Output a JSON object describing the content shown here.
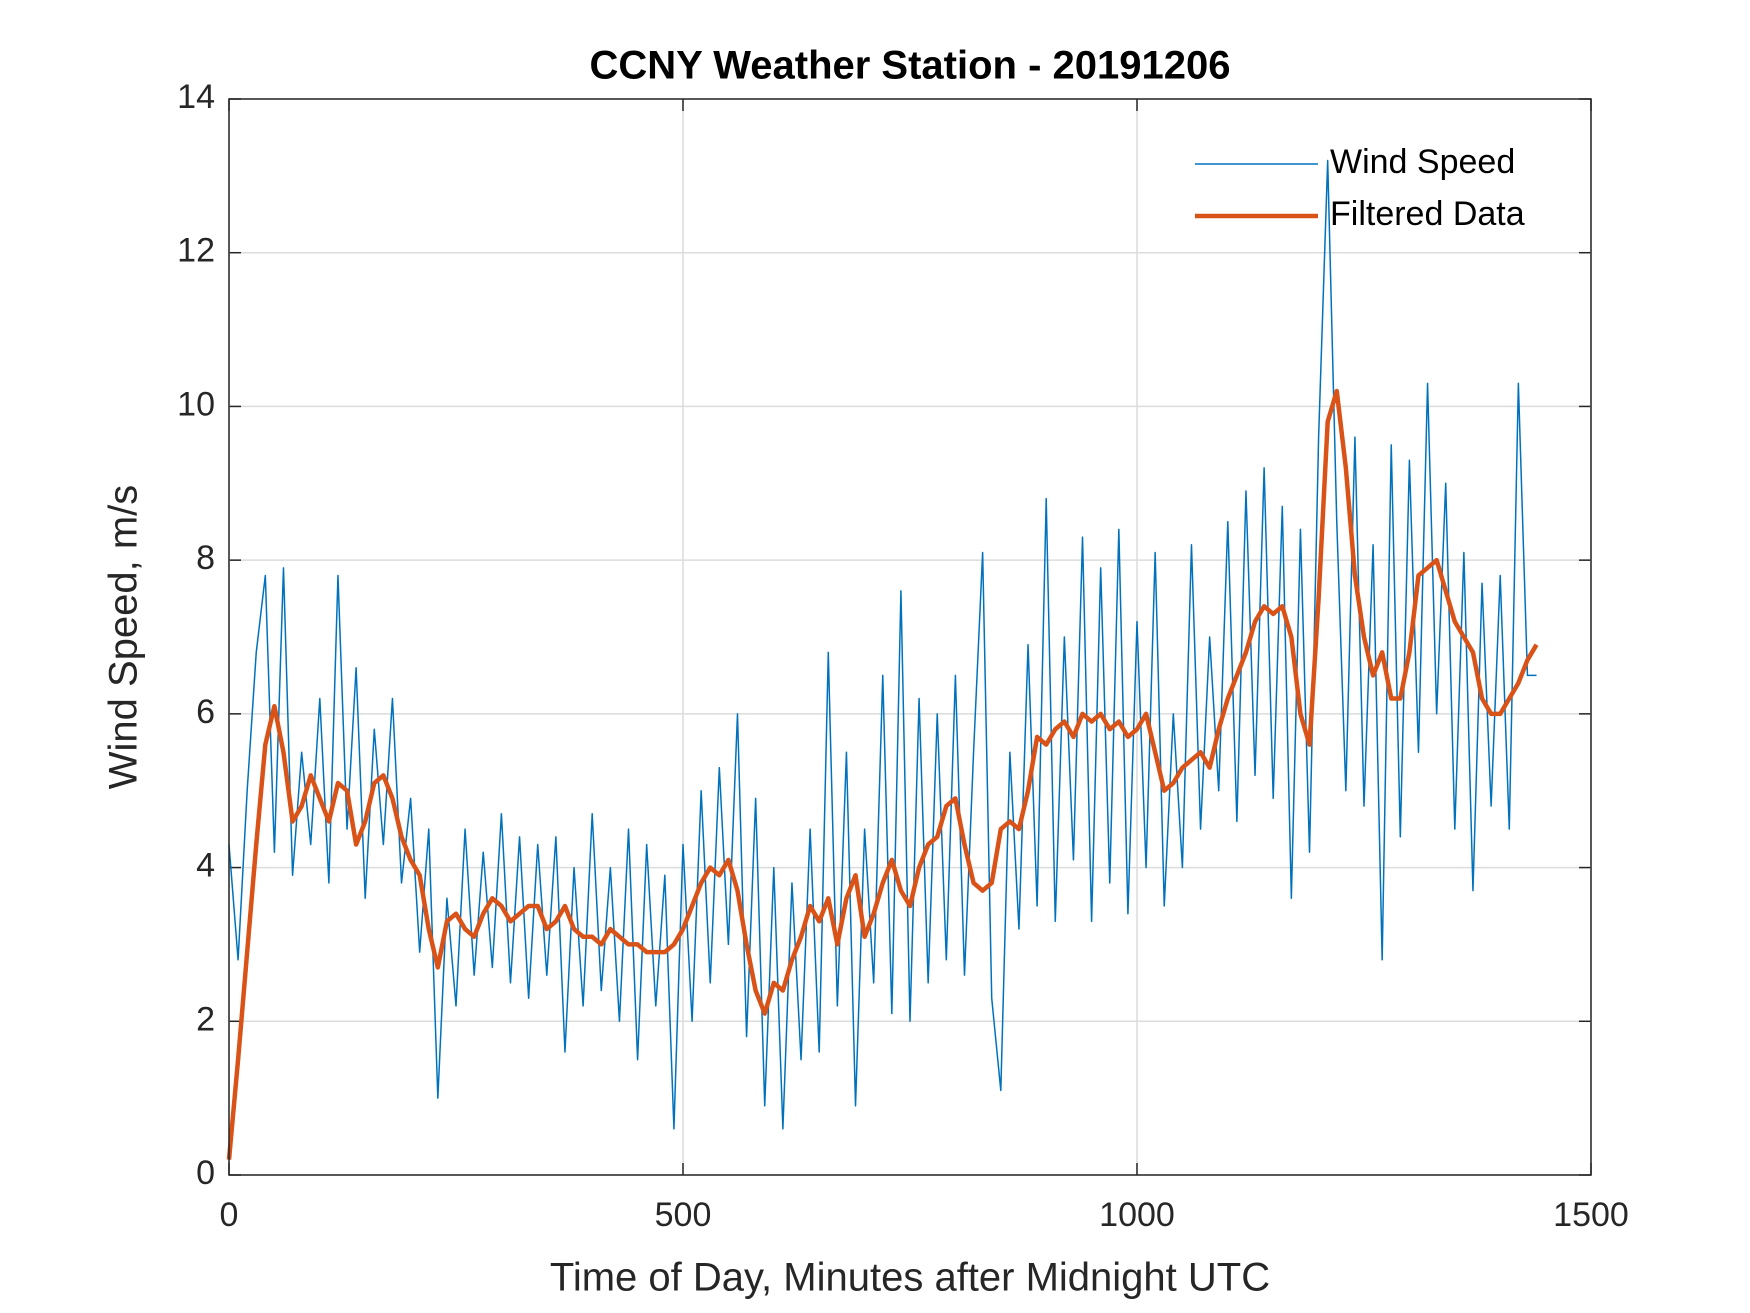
{
  "chart_data": {
    "type": "line",
    "title": "CCNY Weather Station - 20191206",
    "x_label": "Time of Day, Minutes after Midnight UTC",
    "y_label": "Wind Speed, m/s",
    "x": [
      0,
      10,
      20,
      30,
      40,
      50,
      60,
      70,
      80,
      90,
      100,
      110,
      120,
      130,
      140,
      150,
      160,
      170,
      180,
      190,
      200,
      210,
      220,
      230,
      240,
      250,
      260,
      270,
      280,
      290,
      300,
      310,
      320,
      330,
      340,
      350,
      360,
      370,
      380,
      390,
      400,
      410,
      420,
      430,
      440,
      450,
      460,
      470,
      480,
      490,
      500,
      510,
      520,
      530,
      540,
      550,
      560,
      570,
      580,
      590,
      600,
      610,
      620,
      630,
      640,
      650,
      660,
      670,
      680,
      690,
      700,
      710,
      720,
      730,
      740,
      750,
      760,
      770,
      780,
      790,
      800,
      810,
      820,
      830,
      840,
      850,
      860,
      870,
      880,
      890,
      900,
      910,
      920,
      930,
      940,
      950,
      960,
      970,
      980,
      990,
      1000,
      1010,
      1020,
      1030,
      1040,
      1050,
      1060,
      1070,
      1080,
      1090,
      1100,
      1110,
      1120,
      1130,
      1140,
      1150,
      1160,
      1170,
      1180,
      1190,
      1200,
      1210,
      1220,
      1230,
      1240,
      1250,
      1260,
      1270,
      1280,
      1290,
      1300,
      1310,
      1320,
      1330,
      1340,
      1350,
      1360,
      1370,
      1380,
      1390,
      1400,
      1410,
      1420,
      1430,
      1440
    ],
    "series": [
      {
        "name": "Wind Speed",
        "color": "#0072BD",
        "width": 1.5,
        "values": [
          4.3,
          2.8,
          5.0,
          6.8,
          7.8,
          4.2,
          7.9,
          3.9,
          5.5,
          4.3,
          6.2,
          3.8,
          7.8,
          4.5,
          6.6,
          3.6,
          5.8,
          4.3,
          6.2,
          3.8,
          4.9,
          2.9,
          4.5,
          1.0,
          3.6,
          2.2,
          4.5,
          2.6,
          4.2,
          2.7,
          4.7,
          2.5,
          4.4,
          2.3,
          4.3,
          2.6,
          4.4,
          1.6,
          4.0,
          2.2,
          4.7,
          2.4,
          4.0,
          2.0,
          4.5,
          1.5,
          4.3,
          2.2,
          3.9,
          0.6,
          4.3,
          2.0,
          5.0,
          2.5,
          5.3,
          3.0,
          6.0,
          1.8,
          4.9,
          0.9,
          4.0,
          0.6,
          3.8,
          1.5,
          4.5,
          1.6,
          6.8,
          2.2,
          5.5,
          0.9,
          4.5,
          2.5,
          6.5,
          2.1,
          7.6,
          2.0,
          6.2,
          2.5,
          6.0,
          2.8,
          6.5,
          2.6,
          5.5,
          8.1,
          2.3,
          1.1,
          5.5,
          3.2,
          6.9,
          3.5,
          8.8,
          3.3,
          7.0,
          4.1,
          8.3,
          3.3,
          7.9,
          3.8,
          8.4,
          3.4,
          7.2,
          4.0,
          8.1,
          3.5,
          6.0,
          4.0,
          8.2,
          4.5,
          7.0,
          5.0,
          8.5,
          4.6,
          8.9,
          5.2,
          9.2,
          4.9,
          8.7,
          3.6,
          8.4,
          4.2,
          9.6,
          13.2,
          8.5,
          5.0,
          9.6,
          4.8,
          8.2,
          2.8,
          9.5,
          4.4,
          9.3,
          5.5,
          10.3,
          6.0,
          9.0,
          4.5,
          8.1,
          3.7,
          7.7,
          4.8,
          7.8,
          4.5,
          10.3,
          6.5,
          6.5
        ]
      },
      {
        "name": "Filtered Data",
        "color": "#D95319",
        "width": 4.5,
        "values": [
          0.2,
          1.5,
          2.9,
          4.3,
          5.6,
          6.1,
          5.5,
          4.6,
          4.8,
          5.2,
          4.9,
          4.6,
          5.1,
          5.0,
          4.3,
          4.6,
          5.1,
          5.2,
          4.9,
          4.4,
          4.1,
          3.9,
          3.2,
          2.7,
          3.3,
          3.4,
          3.2,
          3.1,
          3.4,
          3.6,
          3.5,
          3.3,
          3.4,
          3.5,
          3.5,
          3.2,
          3.3,
          3.5,
          3.2,
          3.1,
          3.1,
          3.0,
          3.2,
          3.1,
          3.0,
          3.0,
          2.9,
          2.9,
          2.9,
          3.0,
          3.2,
          3.5,
          3.8,
          4.0,
          3.9,
          4.1,
          3.7,
          3.0,
          2.4,
          2.1,
          2.5,
          2.4,
          2.8,
          3.1,
          3.5,
          3.3,
          3.6,
          3.0,
          3.6,
          3.9,
          3.1,
          3.4,
          3.8,
          4.1,
          3.7,
          3.5,
          4.0,
          4.3,
          4.4,
          4.8,
          4.9,
          4.3,
          3.8,
          3.7,
          3.8,
          4.5,
          4.6,
          4.5,
          5.0,
          5.7,
          5.6,
          5.8,
          5.9,
          5.7,
          6.0,
          5.9,
          6.0,
          5.8,
          5.9,
          5.7,
          5.8,
          6.0,
          5.5,
          5.0,
          5.1,
          5.3,
          5.4,
          5.5,
          5.3,
          5.8,
          6.2,
          6.5,
          6.8,
          7.2,
          7.4,
          7.3,
          7.4,
          7.0,
          6.0,
          5.6,
          7.5,
          9.8,
          10.2,
          9.2,
          7.8,
          7.0,
          6.5,
          6.8,
          6.2,
          6.2,
          6.8,
          7.8,
          7.9,
          8.0,
          7.6,
          7.2,
          7.0,
          6.8,
          6.2,
          6.0,
          6.0,
          6.2,
          6.4,
          6.7,
          6.9
        ]
      }
    ],
    "xlim": [
      0,
      1500
    ],
    "xticks": [
      0,
      500,
      1000,
      1500
    ],
    "ylim": [
      0,
      14
    ],
    "yticks": [
      0,
      2,
      4,
      6,
      8,
      10,
      12,
      14
    ],
    "grid": true,
    "legend": "top-right"
  }
}
